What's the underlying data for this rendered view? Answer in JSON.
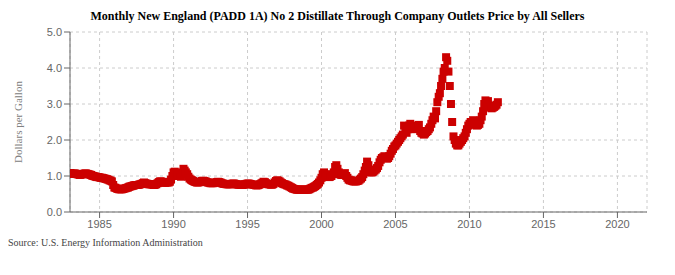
{
  "chart_data": {
    "type": "line",
    "title": "Monthly New England (PADD 1A) No 2 Distillate Through Company Outlets Price by All Sellers",
    "y_label": "Dollars per Gallon",
    "annotations": [
      "Source: U.S. Energy Information Administration"
    ],
    "xlim": [
      1983,
      2022
    ],
    "xticks": [
      1985,
      1990,
      1995,
      2000,
      2005,
      2010,
      2015,
      2020
    ],
    "ylim": [
      0.0,
      5.0
    ],
    "yticks": [
      {
        "value": 0.0,
        "label": "0.0"
      },
      {
        "value": 1.0,
        "label": "1.0"
      },
      {
        "value": 2.0,
        "label": "2.0"
      },
      {
        "value": 3.0,
        "label": "3.0"
      },
      {
        "value": 4.0,
        "label": "4.0"
      },
      {
        "value": 5.0,
        "label": "5.0"
      }
    ],
    "grid": true,
    "series": [
      {
        "type": "line",
        "color": "#cc0000",
        "marker": "square",
        "line_style": "solid",
        "x": [
          1983.0,
          1983.08,
          1983.17,
          1983.25,
          1983.33,
          1983.42,
          1983.5,
          1983.58,
          1983.67,
          1983.75,
          1983.83,
          1983.92,
          1984.0,
          1984.08,
          1984.17,
          1984.25,
          1984.33,
          1984.42,
          1984.5,
          1984.58,
          1984.67,
          1984.75,
          1984.83,
          1984.92,
          1985.0,
          1985.08,
          1985.17,
          1985.25,
          1985.33,
          1985.42,
          1985.5,
          1985.58,
          1985.67,
          1985.75,
          1985.83,
          1985.92,
          1986.0,
          1986.08,
          1986.17,
          1986.25,
          1986.33,
          1986.42,
          1986.5,
          1986.58,
          1986.67,
          1986.75,
          1986.83,
          1986.92,
          1987.0,
          1987.08,
          1987.17,
          1987.25,
          1987.33,
          1987.42,
          1987.5,
          1987.58,
          1987.67,
          1987.75,
          1987.83,
          1987.92,
          1988.0,
          1988.08,
          1988.17,
          1988.25,
          1988.33,
          1988.42,
          1988.5,
          1988.58,
          1988.67,
          1988.75,
          1988.83,
          1988.92,
          1989.0,
          1989.08,
          1989.17,
          1989.25,
          1989.33,
          1989.42,
          1989.5,
          1989.58,
          1989.67,
          1989.75,
          1989.83,
          1989.92,
          1990.0,
          1990.08,
          1990.17,
          1990.25,
          1990.33,
          1990.42,
          1990.5,
          1990.58,
          1990.67,
          1990.75,
          1990.83,
          1990.92,
          1991.0,
          1991.08,
          1991.17,
          1991.25,
          1991.33,
          1991.42,
          1991.5,
          1991.58,
          1991.67,
          1991.75,
          1991.83,
          1991.92,
          1992.0,
          1992.08,
          1992.17,
          1992.25,
          1992.33,
          1992.42,
          1992.5,
          1992.58,
          1992.67,
          1992.75,
          1992.83,
          1992.92,
          1993.0,
          1993.08,
          1993.17,
          1993.25,
          1993.33,
          1993.42,
          1993.5,
          1993.58,
          1993.67,
          1993.75,
          1993.83,
          1993.92,
          1994.0,
          1994.08,
          1994.17,
          1994.25,
          1994.33,
          1994.42,
          1994.5,
          1994.58,
          1994.67,
          1994.75,
          1994.83,
          1994.92,
          1995.0,
          1995.08,
          1995.17,
          1995.25,
          1995.33,
          1995.42,
          1995.5,
          1995.58,
          1995.67,
          1995.75,
          1995.83,
          1995.92,
          1996.0,
          1996.08,
          1996.17,
          1996.25,
          1996.33,
          1996.42,
          1996.5,
          1996.58,
          1996.67,
          1996.75,
          1996.83,
          1996.92,
          1997.0,
          1997.08,
          1997.17,
          1997.25,
          1997.33,
          1997.42,
          1997.5,
          1997.58,
          1997.67,
          1997.75,
          1997.83,
          1997.92,
          1998.0,
          1998.08,
          1998.17,
          1998.25,
          1998.33,
          1998.42,
          1998.5,
          1998.58,
          1998.67,
          1998.75,
          1998.83,
          1998.92,
          1999.0,
          1999.08,
          1999.17,
          1999.25,
          1999.33,
          1999.42,
          1999.5,
          1999.58,
          1999.67,
          1999.75,
          1999.83,
          1999.92,
          2000.0,
          2000.08,
          2000.17,
          2000.25,
          2000.33,
          2000.42,
          2000.5,
          2000.58,
          2000.67,
          2000.75,
          2000.83,
          2000.92,
          2001.0,
          2001.08,
          2001.17,
          2001.25,
          2001.33,
          2001.42,
          2001.5,
          2001.58,
          2001.67,
          2001.75,
          2001.83,
          2001.92,
          2002.0,
          2002.08,
          2002.17,
          2002.25,
          2002.33,
          2002.42,
          2002.5,
          2002.58,
          2002.67,
          2002.75,
          2002.83,
          2002.92,
          2003.0,
          2003.08,
          2003.17,
          2003.25,
          2003.33,
          2003.42,
          2003.5,
          2003.58,
          2003.67,
          2003.75,
          2003.83,
          2003.92,
          2004.0,
          2004.08,
          2004.17,
          2004.25,
          2004.33,
          2004.42,
          2004.5,
          2004.58,
          2004.67,
          2004.75,
          2004.83,
          2004.92
        ],
        "values": [
          1.08,
          1.07,
          1.06,
          1.07,
          1.07,
          1.06,
          1.05,
          1.04,
          1.03,
          1.04,
          1.05,
          1.06,
          1.07,
          1.07,
          1.06,
          1.05,
          1.04,
          1.03,
          1.01,
          1.0,
          0.99,
          0.98,
          0.97,
          0.97,
          0.96,
          0.95,
          0.95,
          0.94,
          0.93,
          0.92,
          0.91,
          0.9,
          0.88,
          0.87,
          0.85,
          0.75,
          0.68,
          0.67,
          0.65,
          0.64,
          0.63,
          0.63,
          0.63,
          0.64,
          0.65,
          0.66,
          0.67,
          0.68,
          0.7,
          0.71,
          0.72,
          0.73,
          0.74,
          0.75,
          0.75,
          0.75,
          0.76,
          0.77,
          0.78,
          0.8,
          0.82,
          0.8,
          0.79,
          0.78,
          0.77,
          0.77,
          0.77,
          0.76,
          0.75,
          0.76,
          0.77,
          0.8,
          0.83,
          0.85,
          0.85,
          0.83,
          0.82,
          0.81,
          0.82,
          0.82,
          0.82,
          0.84,
          0.9,
          1.0,
          1.1,
          1.12,
          1.08,
          1.05,
          1.02,
          1.0,
          0.98,
          1.1,
          1.2,
          1.15,
          1.1,
          1.05,
          0.98,
          0.93,
          0.9,
          0.88,
          0.86,
          0.84,
          0.83,
          0.82,
          0.82,
          0.83,
          0.84,
          0.86,
          0.87,
          0.86,
          0.85,
          0.83,
          0.82,
          0.81,
          0.8,
          0.8,
          0.8,
          0.81,
          0.82,
          0.83,
          0.84,
          0.83,
          0.82,
          0.8,
          0.79,
          0.78,
          0.78,
          0.77,
          0.77,
          0.77,
          0.77,
          0.78,
          0.79,
          0.79,
          0.78,
          0.77,
          0.76,
          0.76,
          0.76,
          0.75,
          0.75,
          0.76,
          0.77,
          0.78,
          0.79,
          0.79,
          0.78,
          0.77,
          0.76,
          0.76,
          0.75,
          0.74,
          0.74,
          0.75,
          0.77,
          0.79,
          0.81,
          0.84,
          0.83,
          0.8,
          0.78,
          0.77,
          0.77,
          0.76,
          0.76,
          0.78,
          0.82,
          0.86,
          0.88,
          0.87,
          0.85,
          0.82,
          0.8,
          0.78,
          0.77,
          0.76,
          0.74,
          0.73,
          0.71,
          0.69,
          0.67,
          0.65,
          0.64,
          0.63,
          0.62,
          0.62,
          0.62,
          0.62,
          0.62,
          0.62,
          0.62,
          0.62,
          0.62,
          0.62,
          0.63,
          0.65,
          0.67,
          0.68,
          0.7,
          0.72,
          0.75,
          0.78,
          0.82,
          0.88,
          0.95,
          1.05,
          1.1,
          1.05,
          1.0,
          0.98,
          0.97,
          0.98,
          1.0,
          1.05,
          1.1,
          1.25,
          1.3,
          1.2,
          1.1,
          1.05,
          1.03,
          1.03,
          1.05,
          1.08,
          1.0,
          0.95,
          0.9,
          0.88,
          0.88,
          0.86,
          0.85,
          0.85,
          0.85,
          0.86,
          0.87,
          0.9,
          0.93,
          0.97,
          1.05,
          1.15,
          1.25,
          1.4,
          1.3,
          1.15,
          1.1,
          1.1,
          1.12,
          1.15,
          1.18,
          1.22,
          1.28,
          1.38,
          1.45,
          1.5,
          1.52,
          1.55,
          1.5,
          1.48,
          1.5,
          1.55,
          1.62,
          1.7,
          1.75,
          1.82
        ]
      },
      {
        "type": "scatter",
        "color": "#cc0000",
        "marker": "square",
        "x": [
          2005.0,
          2005.08,
          2005.17,
          2005.25,
          2005.33,
          2005.42,
          2005.5,
          2005.58,
          2005.67,
          2005.75,
          2005.83,
          2005.92,
          2006.0,
          2006.08,
          2006.17,
          2006.25,
          2006.33,
          2006.42,
          2006.5,
          2006.58,
          2006.67,
          2006.75,
          2006.83,
          2006.92,
          2007.0,
          2007.08,
          2007.17,
          2007.25,
          2007.33,
          2007.42,
          2007.5,
          2007.58,
          2007.67,
          2007.75,
          2007.83,
          2007.92,
          2008.0,
          2008.08,
          2008.17,
          2008.25,
          2008.33,
          2008.42,
          2008.5,
          2008.58,
          2008.67,
          2008.75,
          2008.83,
          2008.92,
          2009.0,
          2009.08,
          2009.17,
          2009.25,
          2009.33,
          2009.42,
          2009.5,
          2009.58,
          2009.67,
          2009.75,
          2009.83,
          2009.92,
          2010.0,
          2010.08,
          2010.17,
          2010.25,
          2010.33,
          2010.42,
          2010.5,
          2010.58,
          2010.67,
          2010.75,
          2010.83,
          2010.92,
          2011.0,
          2011.08,
          2011.17,
          2011.25,
          2011.33,
          2011.42,
          2011.5,
          2011.58,
          2011.67,
          2011.75,
          2011.83,
          2011.92
        ],
        "values": [
          1.85,
          1.9,
          1.95,
          2.0,
          2.05,
          2.1,
          2.15,
          2.4,
          2.35,
          2.2,
          2.3,
          2.4,
          2.45,
          2.4,
          2.35,
          2.3,
          2.32,
          2.35,
          2.38,
          2.42,
          2.25,
          2.2,
          2.18,
          2.15,
          2.18,
          2.22,
          2.25,
          2.3,
          2.35,
          2.45,
          2.55,
          2.65,
          2.6,
          2.8,
          3.05,
          3.2,
          3.3,
          3.5,
          3.7,
          3.9,
          4.0,
          4.3,
          4.2,
          3.9,
          3.5,
          3.0,
          2.5,
          2.1,
          2.0,
          1.9,
          1.85,
          1.85,
          1.9,
          1.95,
          2.0,
          2.05,
          2.1,
          2.2,
          2.3,
          2.4,
          2.45,
          2.5,
          2.48,
          2.55,
          2.45,
          2.42,
          2.4,
          2.42,
          2.45,
          2.55,
          2.65,
          2.8,
          3.0,
          3.1,
          3.05,
          3.08,
          2.95,
          2.9,
          2.88,
          2.9,
          2.92,
          2.95,
          2.98,
          3.05
        ]
      }
    ]
  }
}
